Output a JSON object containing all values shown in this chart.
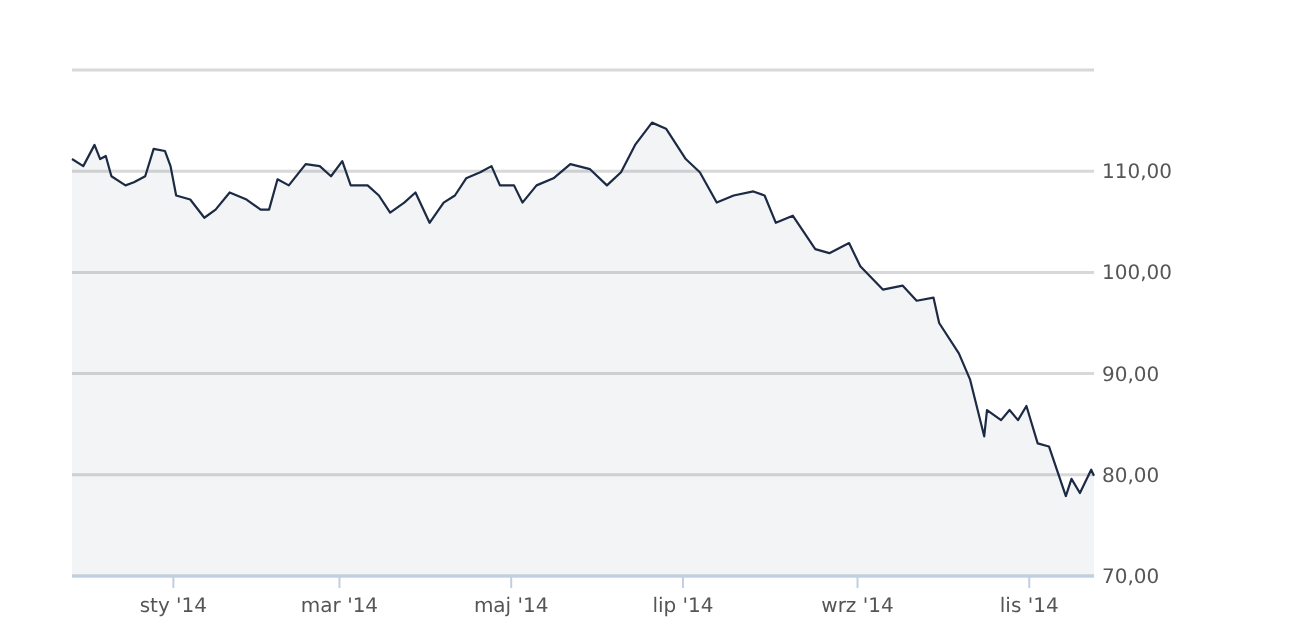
{
  "chart_data": {
    "type": "area",
    "grid": "y",
    "xlim": [
      "2013-11-26",
      "2014-11-24"
    ],
    "ylim": [
      70,
      120
    ],
    "xticks": [
      {
        "value": "2014-01-01",
        "label": "sty '14"
      },
      {
        "value": "2014-03-01",
        "label": "mar '14"
      },
      {
        "value": "2014-05-01",
        "label": "maj '14"
      },
      {
        "value": "2014-07-01",
        "label": "lip '14"
      },
      {
        "value": "2014-09-01",
        "label": "wrz '14"
      },
      {
        "value": "2014-11-01",
        "label": "lis '14"
      }
    ],
    "yticks": [
      {
        "value": 70,
        "label": "70,00"
      },
      {
        "value": 80,
        "label": "80,00"
      },
      {
        "value": 90,
        "label": "90,00"
      },
      {
        "value": 100,
        "label": "100,00"
      },
      {
        "value": 110,
        "label": "110,00"
      },
      {
        "value": 120,
        "label": null
      }
    ],
    "series": [
      {
        "color": "#1c2a44",
        "x": [
          "2013-11-26",
          "2013-11-30",
          "2013-12-04",
          "2013-12-06",
          "2013-12-08",
          "2013-12-10",
          "2013-12-15",
          "2013-12-18",
          "2013-12-22",
          "2013-12-25",
          "2013-12-29",
          "2013-12-31",
          "2014-01-02",
          "2014-01-07",
          "2014-01-12",
          "2014-01-16",
          "2014-01-21",
          "2014-01-27",
          "2014-02-01",
          "2014-02-04",
          "2014-02-07",
          "2014-02-11",
          "2014-02-17",
          "2014-02-22",
          "2014-02-26",
          "2014-03-02",
          "2014-03-05",
          "2014-03-11",
          "2014-03-15",
          "2014-03-19",
          "2014-03-24",
          "2014-03-28",
          "2014-04-02",
          "2014-04-07",
          "2014-04-11",
          "2014-04-15",
          "2014-04-20",
          "2014-04-24",
          "2014-04-27",
          "2014-05-02",
          "2014-05-05",
          "2014-05-10",
          "2014-05-16",
          "2014-05-22",
          "2014-05-29",
          "2014-06-04",
          "2014-06-09",
          "2014-06-14",
          "2014-06-20",
          "2014-06-25",
          "2014-07-02",
          "2014-07-07",
          "2014-07-13",
          "2014-07-19",
          "2014-07-26",
          "2014-07-30",
          "2014-08-03",
          "2014-08-09",
          "2014-08-17",
          "2014-08-22",
          "2014-08-29",
          "2014-09-02",
          "2014-09-10",
          "2014-09-17",
          "2014-09-22",
          "2014-09-28",
          "2014-09-30",
          "2014-10-07",
          "2014-10-11",
          "2014-10-16",
          "2014-10-17",
          "2014-10-22",
          "2014-10-25",
          "2014-10-28",
          "2014-10-31",
          "2014-11-04",
          "2014-11-08",
          "2014-11-14",
          "2014-11-16",
          "2014-11-19",
          "2014-11-23",
          "2014-11-24"
        ],
        "values": [
          111.2,
          110.5,
          112.6,
          111.2,
          111.5,
          109.5,
          108.6,
          108.9,
          109.5,
          112.2,
          112,
          110.5,
          107.6,
          107.2,
          105.4,
          106.2,
          107.9,
          107.2,
          106.2,
          106.2,
          109.2,
          108.6,
          110.7,
          110.5,
          109.5,
          111,
          108.6,
          108.6,
          107.6,
          105.9,
          106.9,
          107.9,
          104.9,
          106.9,
          107.6,
          109.3,
          109.9,
          110.5,
          108.6,
          108.6,
          106.9,
          108.6,
          109.3,
          110.7,
          110.2,
          108.6,
          109.9,
          112.6,
          114.8,
          114.2,
          111.2,
          109.9,
          106.9,
          107.6,
          108,
          107.6,
          104.9,
          105.6,
          102.3,
          101.9,
          102.9,
          100.6,
          98.3,
          98.7,
          97.2,
          97.5,
          95,
          92,
          89.4,
          83.8,
          86.4,
          85.4,
          86.4,
          85.4,
          86.8,
          83.1,
          82.8,
          77.9,
          79.6,
          78.2,
          80.5,
          79.9
        ]
      }
    ]
  }
}
